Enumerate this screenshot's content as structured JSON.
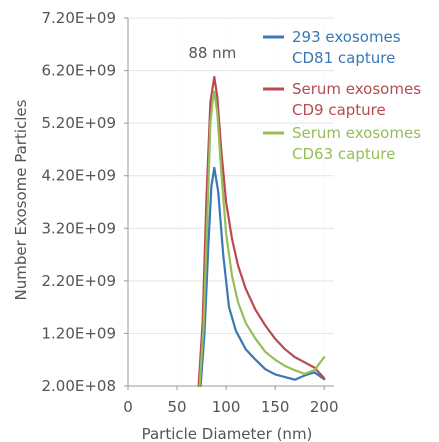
{
  "chart_data": {
    "type": "line",
    "title": "",
    "xlabel": "Particle Diameter (nm)",
    "ylabel": "Number Exosome Particles",
    "xlim": [
      0,
      210
    ],
    "ylim": [
      200000000,
      7200000000
    ],
    "x_ticks": [
      0,
      50,
      100,
      150,
      200
    ],
    "x_tick_labels": [
      "0",
      "50",
      "100",
      "150",
      "200"
    ],
    "y_ticks": [
      200000000,
      1200000000,
      2200000000,
      3200000000,
      4200000000,
      5200000000,
      6200000000,
      7200000000
    ],
    "y_tick_labels": [
      "2.00E+08",
      "1.20E+09",
      "2.20E+09",
      "3.20E+09",
      "4.20E+09",
      "5.20E+09",
      "6.20E+09",
      "7.20E+09"
    ],
    "grid": true,
    "legend_position": "top-right",
    "annotation": {
      "text": "88 nm",
      "x": 88
    },
    "series": [
      {
        "name_lines": [
          "293 exosomes",
          "CD81 capture"
        ],
        "color": "#3a78b4",
        "x": [
          74,
          78,
          82,
          85,
          88,
          92,
          97,
          103,
          110,
          120,
          130,
          140,
          150,
          160,
          170,
          180,
          190,
          200
        ],
        "y": [
          200000000,
          1200000000,
          2900000000,
          4000000000,
          4350000000,
          3900000000,
          2700000000,
          1700000000,
          1250000000,
          900000000,
          700000000,
          520000000,
          420000000,
          370000000,
          320000000,
          400000000,
          460000000,
          330000000
        ]
      },
      {
        "name_lines": [
          "Serum exosomes",
          "CD9 capture"
        ],
        "color": "#b84a50",
        "x": [
          72,
          76,
          80,
          84,
          88,
          91,
          95,
          100,
          106,
          112,
          120,
          130,
          140,
          150,
          160,
          170,
          180,
          190,
          200
        ],
        "y": [
          200000000,
          1400000000,
          3800000000,
          5600000000,
          6080000000,
          5700000000,
          4700000000,
          3700000000,
          3000000000,
          2500000000,
          2050000000,
          1650000000,
          1350000000,
          1100000000,
          900000000,
          750000000,
          650000000,
          550000000,
          350000000
        ]
      },
      {
        "name_lines": [
          "Serum exosomes",
          "CD63 capture"
        ],
        "color": "#94be5a",
        "x": [
          73,
          77,
          81,
          84,
          87,
          88,
          91,
          95,
          100,
          106,
          112,
          120,
          130,
          140,
          150,
          160,
          170,
          180,
          190,
          200
        ],
        "y": [
          200000000,
          1300000000,
          3500000000,
          5200000000,
          5750000000,
          5800000000,
          5400000000,
          4300000000,
          3100000000,
          2300000000,
          1800000000,
          1400000000,
          1100000000,
          850000000,
          700000000,
          580000000,
          500000000,
          430000000,
          500000000,
          750000000
        ]
      }
    ]
  }
}
